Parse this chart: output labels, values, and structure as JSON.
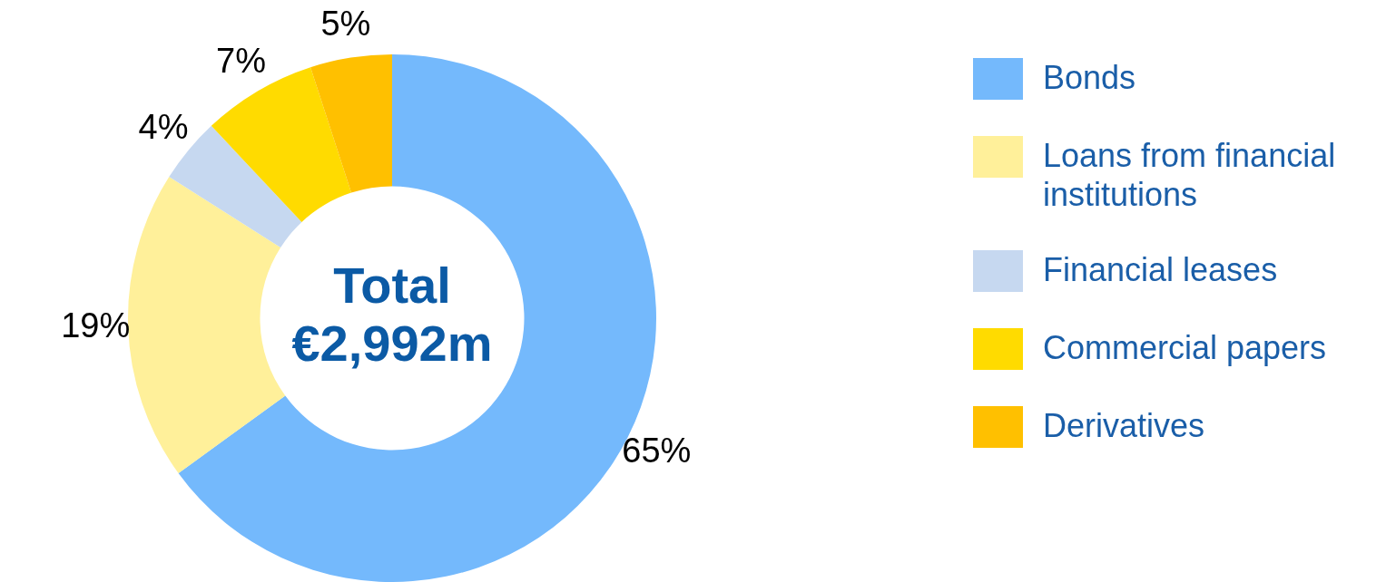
{
  "chart_data": {
    "type": "donut",
    "categories": [
      "Bonds",
      "Loans from financial institutions",
      "Financial leases",
      "Commercial papers",
      "Derivatives"
    ],
    "values": [
      65,
      19,
      4,
      7,
      5
    ],
    "colors": [
      "#74b9fc",
      "#fff09a",
      "#c6d8f0",
      "#ffdb00",
      "#ffc000"
    ],
    "value_labels": [
      "65%",
      "19%",
      "4%",
      "7%",
      "5%"
    ],
    "annotations": [
      "Total",
      "€2,992m"
    ],
    "legend": "right"
  }
}
